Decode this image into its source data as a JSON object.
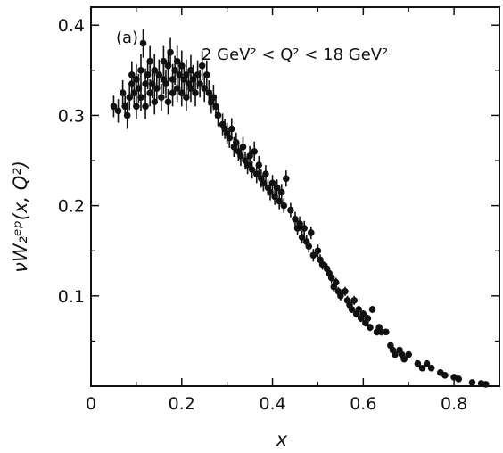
{
  "chart_data": {
    "type": "scatter",
    "title": "",
    "panel_label": "(a)",
    "annotation": "2 GeV² < Q² < 18 GeV²",
    "xlabel": "x",
    "ylabel": "νW₂ᵉᵖ(x, Q²)",
    "xlim": [
      0,
      0.9
    ],
    "ylim": [
      0,
      0.42
    ],
    "xticks": [
      0,
      0.2,
      0.4,
      0.6,
      0.8
    ],
    "xtick_labels": [
      "0",
      "0.2",
      "0.4",
      "0.6",
      "0.8"
    ],
    "yticks": [
      0.1,
      0.2,
      0.3,
      0.4
    ],
    "ytick_labels": [
      "0.1",
      "0.2",
      "0.3",
      "0.4"
    ],
    "grid": false,
    "legend": "none",
    "marker_color": "#111111",
    "series": [
      {
        "points": [
          [
            0.05,
            0.31,
            0.012
          ],
          [
            0.06,
            0.305,
            0.013
          ],
          [
            0.07,
            0.325,
            0.014
          ],
          [
            0.075,
            0.31,
            0.012
          ],
          [
            0.08,
            0.3,
            0.015
          ],
          [
            0.085,
            0.32,
            0.014
          ],
          [
            0.09,
            0.335,
            0.016
          ],
          [
            0.09,
            0.345,
            0.015
          ],
          [
            0.095,
            0.325,
            0.013
          ],
          [
            0.1,
            0.34,
            0.017
          ],
          [
            0.1,
            0.31,
            0.014
          ],
          [
            0.105,
            0.33,
            0.016
          ],
          [
            0.11,
            0.35,
            0.018
          ],
          [
            0.11,
            0.32,
            0.015
          ],
          [
            0.115,
            0.38,
            0.016
          ],
          [
            0.12,
            0.335,
            0.017
          ],
          [
            0.12,
            0.31,
            0.014
          ],
          [
            0.125,
            0.345,
            0.016
          ],
          [
            0.13,
            0.325,
            0.015
          ],
          [
            0.13,
            0.36,
            0.017
          ],
          [
            0.135,
            0.335,
            0.016
          ],
          [
            0.14,
            0.35,
            0.018
          ],
          [
            0.14,
            0.315,
            0.014
          ],
          [
            0.145,
            0.33,
            0.016
          ],
          [
            0.15,
            0.345,
            0.017
          ],
          [
            0.155,
            0.32,
            0.015
          ],
          [
            0.16,
            0.34,
            0.016
          ],
          [
            0.16,
            0.36,
            0.017
          ],
          [
            0.165,
            0.335,
            0.016
          ],
          [
            0.17,
            0.315,
            0.014
          ],
          [
            0.17,
            0.355,
            0.018
          ],
          [
            0.175,
            0.37,
            0.016
          ],
          [
            0.18,
            0.34,
            0.017
          ],
          [
            0.18,
            0.325,
            0.015
          ],
          [
            0.185,
            0.35,
            0.016
          ],
          [
            0.19,
            0.36,
            0.017
          ],
          [
            0.19,
            0.33,
            0.015
          ],
          [
            0.195,
            0.345,
            0.016
          ],
          [
            0.2,
            0.355,
            0.017
          ],
          [
            0.2,
            0.325,
            0.015
          ],
          [
            0.205,
            0.34,
            0.016
          ],
          [
            0.21,
            0.345,
            0.017
          ],
          [
            0.21,
            0.32,
            0.015
          ],
          [
            0.215,
            0.335,
            0.016
          ],
          [
            0.22,
            0.35,
            0.017
          ],
          [
            0.22,
            0.33,
            0.015
          ],
          [
            0.225,
            0.34,
            0.016
          ],
          [
            0.23,
            0.325,
            0.015
          ],
          [
            0.235,
            0.345,
            0.016
          ],
          [
            0.24,
            0.335,
            0.015
          ],
          [
            0.245,
            0.355,
            0.016
          ],
          [
            0.25,
            0.33,
            0.015
          ],
          [
            0.255,
            0.345,
            0.016
          ],
          [
            0.26,
            0.325,
            0.014
          ],
          [
            0.265,
            0.315,
            0.013
          ],
          [
            0.27,
            0.32,
            0.014
          ],
          [
            0.275,
            0.31,
            0.013
          ],
          [
            0.28,
            0.3,
            0.012
          ],
          [
            0.29,
            0.29,
            0.012
          ],
          [
            0.295,
            0.285,
            0.011
          ],
          [
            0.3,
            0.28,
            0.012
          ],
          [
            0.305,
            0.275,
            0.011
          ],
          [
            0.31,
            0.285,
            0.012
          ],
          [
            0.315,
            0.265,
            0.011
          ],
          [
            0.32,
            0.27,
            0.011
          ],
          [
            0.325,
            0.26,
            0.01
          ],
          [
            0.33,
            0.255,
            0.011
          ],
          [
            0.335,
            0.265,
            0.011
          ],
          [
            0.34,
            0.25,
            0.01
          ],
          [
            0.345,
            0.245,
            0.01
          ],
          [
            0.35,
            0.255,
            0.011
          ],
          [
            0.355,
            0.24,
            0.01
          ],
          [
            0.36,
            0.26,
            0.011
          ],
          [
            0.365,
            0.235,
            0.01
          ],
          [
            0.37,
            0.245,
            0.01
          ],
          [
            0.375,
            0.23,
            0.01
          ],
          [
            0.38,
            0.225,
            0.009
          ],
          [
            0.385,
            0.235,
            0.01
          ],
          [
            0.39,
            0.22,
            0.009
          ],
          [
            0.395,
            0.215,
            0.009
          ],
          [
            0.4,
            0.225,
            0.009
          ],
          [
            0.405,
            0.21,
            0.009
          ],
          [
            0.41,
            0.22,
            0.009
          ],
          [
            0.415,
            0.205,
            0.009
          ],
          [
            0.42,
            0.215,
            0.009
          ],
          [
            0.425,
            0.2,
            0.008
          ],
          [
            0.43,
            0.23,
            0.009
          ],
          [
            0.44,
            0.195,
            0.008
          ],
          [
            0.45,
            0.185,
            0.008
          ],
          [
            0.455,
            0.175,
            0.008
          ],
          [
            0.46,
            0.18,
            0.008
          ],
          [
            0.465,
            0.165,
            0.007
          ],
          [
            0.47,
            0.175,
            0.008
          ],
          [
            0.475,
            0.16,
            0.007
          ],
          [
            0.48,
            0.155,
            0.007
          ],
          [
            0.485,
            0.17,
            0.007
          ],
          [
            0.49,
            0.145,
            0.007
          ],
          [
            0.5,
            0.15,
            0.007
          ],
          [
            0.505,
            0.14,
            0.006
          ],
          [
            0.51,
            0.135,
            0.006
          ],
          [
            0.52,
            0.13,
            0.006
          ],
          [
            0.525,
            0.125,
            0.006
          ],
          [
            0.53,
            0.12,
            0.006
          ],
          [
            0.535,
            0.11,
            0.005
          ],
          [
            0.54,
            0.115,
            0.005
          ],
          [
            0.545,
            0.105,
            0.005
          ],
          [
            0.55,
            0.1,
            0.005
          ],
          [
            0.56,
            0.105,
            0.005
          ],
          [
            0.565,
            0.095,
            0.005
          ],
          [
            0.57,
            0.09,
            0.005
          ],
          [
            0.575,
            0.085,
            0.004
          ],
          [
            0.58,
            0.095,
            0.005
          ],
          [
            0.585,
            0.08,
            0.004
          ],
          [
            0.59,
            0.085,
            0.004
          ],
          [
            0.595,
            0.075,
            0.004
          ],
          [
            0.6,
            0.08,
            0.004
          ],
          [
            0.605,
            0.07,
            0.004
          ],
          [
            0.61,
            0.075,
            0.004
          ],
          [
            0.615,
            0.065,
            0.004
          ],
          [
            0.62,
            0.085,
            0.004
          ],
          [
            0.63,
            0.06,
            0.004
          ],
          [
            0.635,
            0.065,
            0.004
          ],
          [
            0.64,
            0.06,
            0.004
          ],
          [
            0.65,
            0.06,
            0.003
          ],
          [
            0.66,
            0.045,
            0.003
          ],
          [
            0.665,
            0.04,
            0.003
          ],
          [
            0.67,
            0.035,
            0.003
          ],
          [
            0.68,
            0.04,
            0.003
          ],
          [
            0.685,
            0.035,
            0.003
          ],
          [
            0.69,
            0.03,
            0.003
          ],
          [
            0.7,
            0.035,
            0.003
          ],
          [
            0.72,
            0.025,
            0.003
          ],
          [
            0.73,
            0.02,
            0.002
          ],
          [
            0.74,
            0.025,
            0.002
          ],
          [
            0.75,
            0.02,
            0.002
          ],
          [
            0.77,
            0.015,
            0.002
          ],
          [
            0.78,
            0.012,
            0.002
          ],
          [
            0.8,
            0.01,
            0.002
          ],
          [
            0.81,
            0.008,
            0.002
          ],
          [
            0.84,
            0.004,
            0.002
          ],
          [
            0.86,
            0.003,
            0.002
          ],
          [
            0.87,
            0.002,
            0.002
          ]
        ]
      }
    ]
  }
}
